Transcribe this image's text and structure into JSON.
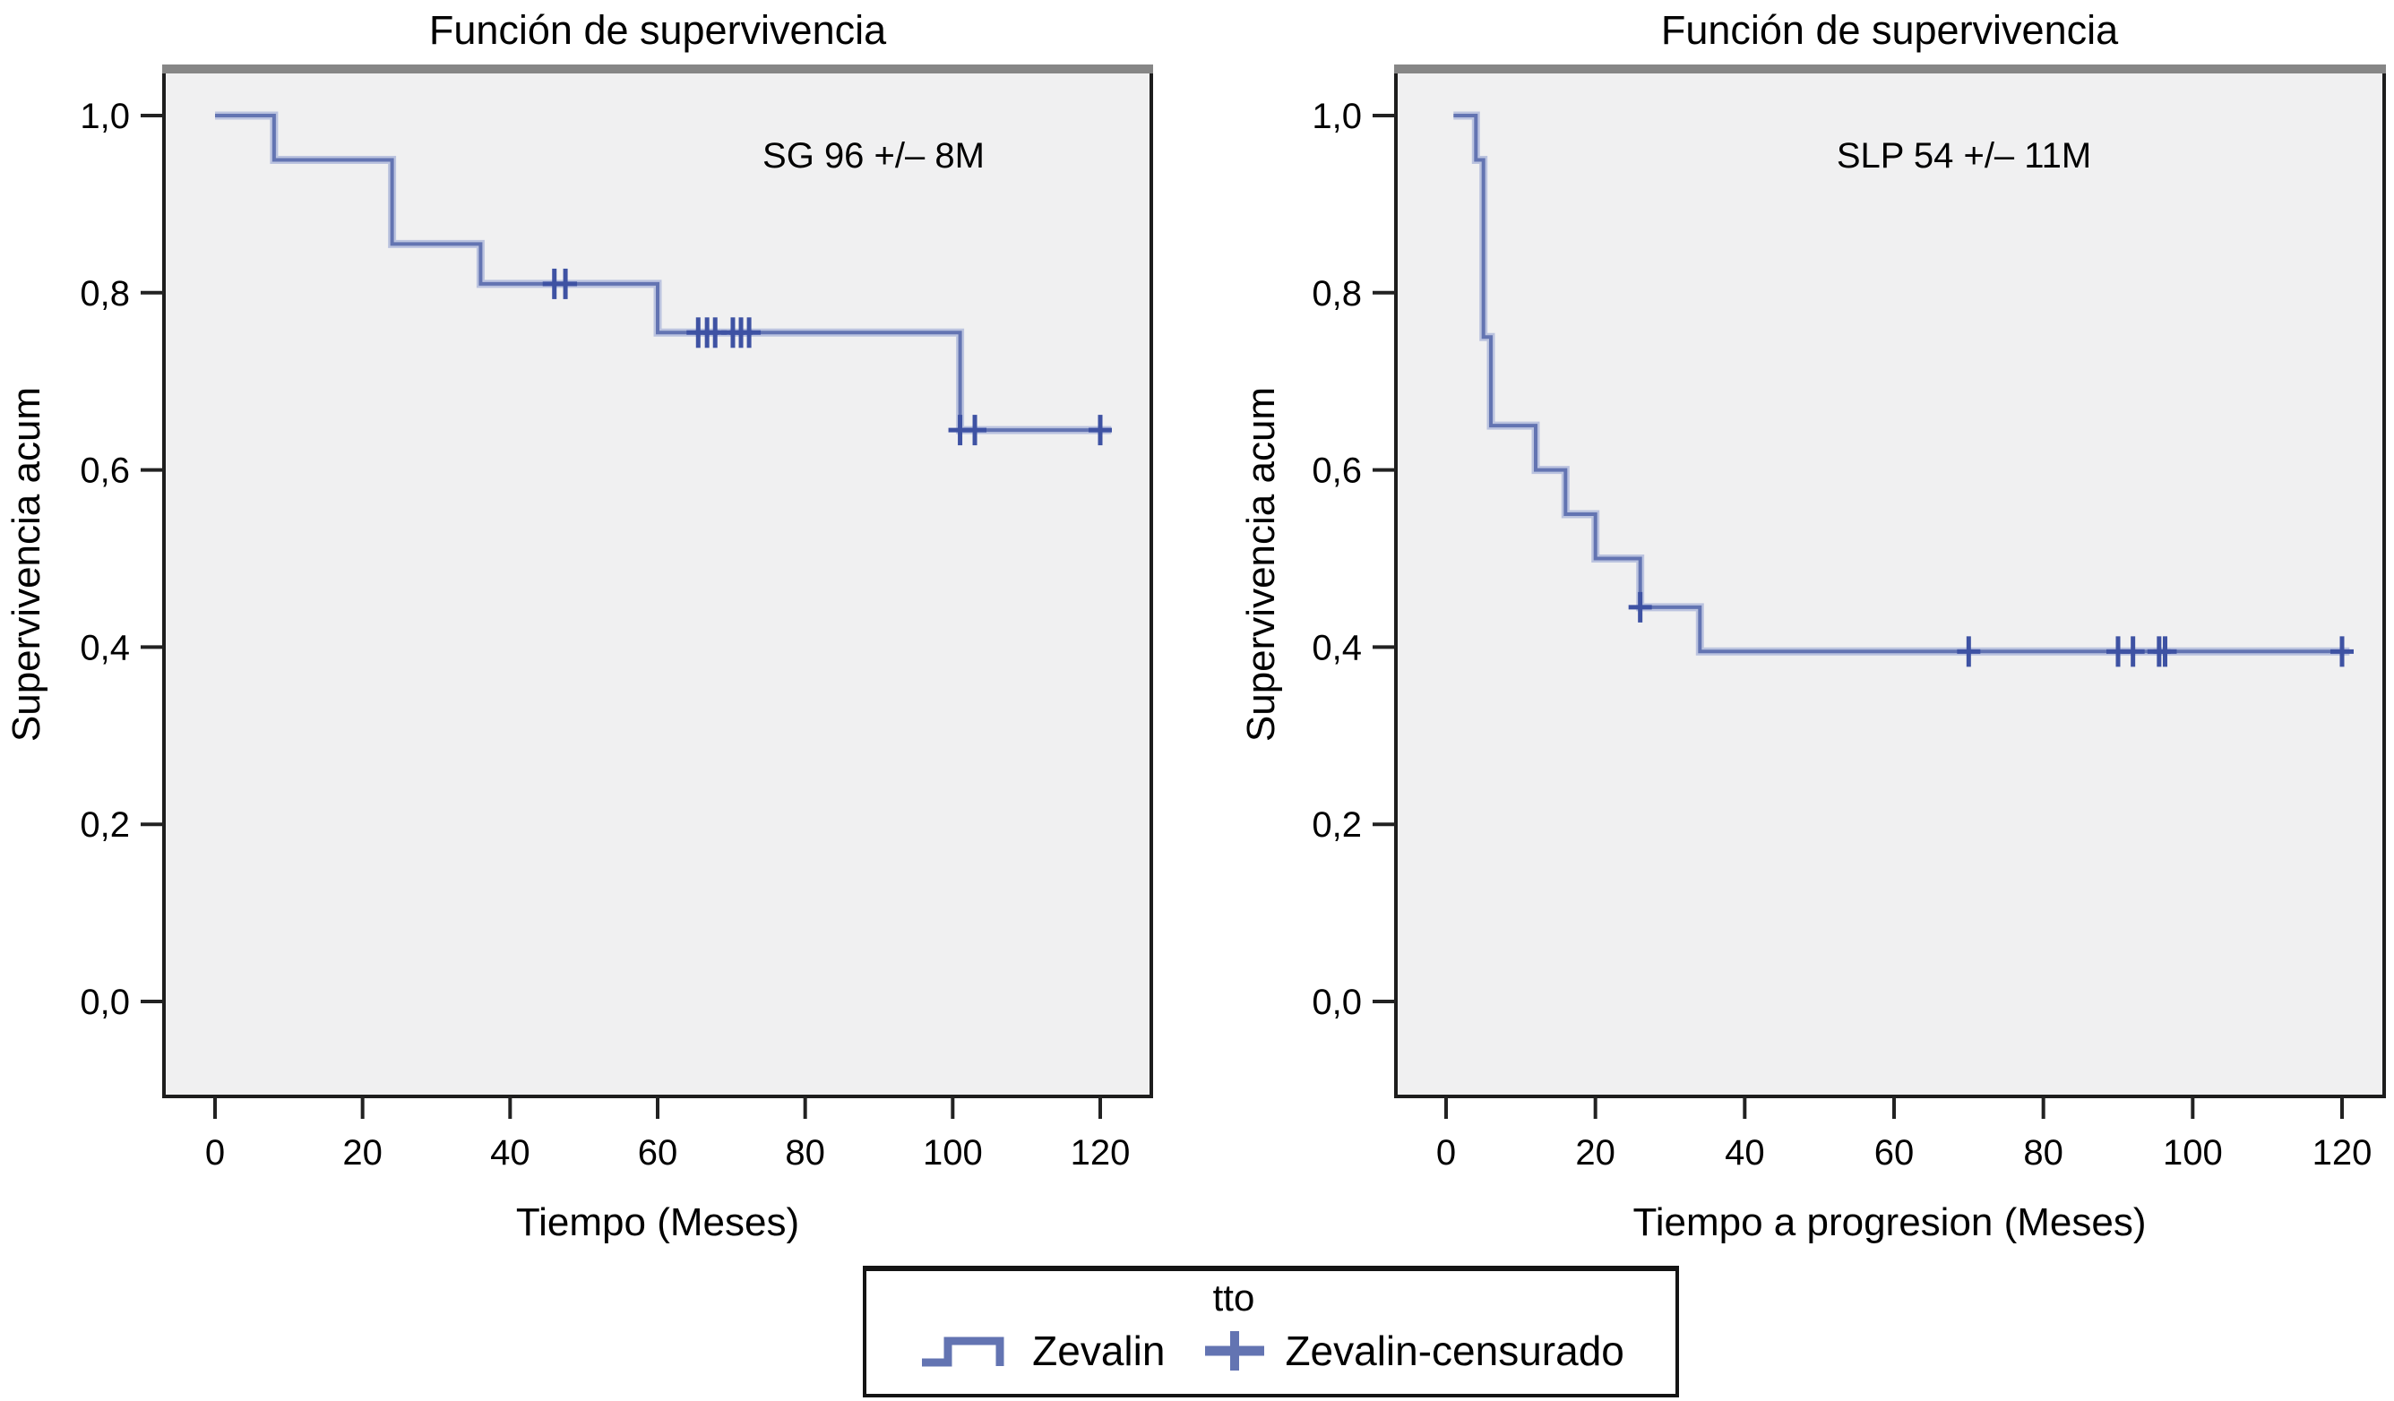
{
  "figure": {
    "background": "#ffffff"
  },
  "colors": {
    "line": "#6374b2",
    "line_halo": "#aab4d8",
    "censor": "#3e52a3",
    "plot_bg": "#f0f0f1",
    "frame": "#1d1d1d",
    "frame_top_shadow": "#868686",
    "tick": "#222222",
    "text": "#000000"
  },
  "legend": {
    "title": "tto",
    "entries": [
      {
        "symbol": "step-line",
        "label": "Zevalin"
      },
      {
        "symbol": "plus",
        "label": "Zevalin-censurado"
      }
    ]
  },
  "chart_data": [
    {
      "type": "line",
      "subtype": "kaplan-meier-step",
      "title": "Función de supervivencia",
      "annotation": "SG 96 +/– 8M",
      "xlabel": "Tiempo (Meses)",
      "ylabel": "Supervivencia acum",
      "xlim": [
        -7,
        127
      ],
      "ylim": [
        -0.11,
        1.06
      ],
      "x_ticks": [
        0,
        20,
        40,
        60,
        80,
        100,
        120
      ],
      "y_ticks": [
        1.0,
        0.8,
        0.6,
        0.4,
        0.2,
        0.0
      ],
      "y_tick_labels": [
        "1,0",
        "0,8",
        "0,6",
        "0,4",
        "0,2",
        "0,0"
      ],
      "grid": false,
      "series": [
        {
          "name": "Zevalin",
          "steps": [
            [
              0,
              1.0
            ],
            [
              8,
              1.0
            ],
            [
              8,
              0.95
            ],
            [
              24,
              0.95
            ],
            [
              24,
              0.855
            ],
            [
              36,
              0.855
            ],
            [
              36,
              0.81
            ],
            [
              60,
              0.81
            ],
            [
              60,
              0.755
            ],
            [
              101,
              0.755
            ],
            [
              101,
              0.645
            ],
            [
              121.5,
              0.645
            ]
          ]
        }
      ],
      "censored": [
        [
          46,
          0.81
        ],
        [
          47.5,
          0.81
        ],
        [
          65.5,
          0.755
        ],
        [
          66.7,
          0.755
        ],
        [
          67.8,
          0.755
        ],
        [
          70.2,
          0.755
        ],
        [
          71.3,
          0.755
        ],
        [
          72.4,
          0.755
        ],
        [
          101,
          0.645
        ],
        [
          103,
          0.645
        ],
        [
          120,
          0.645
        ]
      ]
    },
    {
      "type": "line",
      "subtype": "kaplan-meier-step",
      "title": "Función de supervivencia",
      "annotation": "SLP 54 +/– 11M",
      "xlabel": "Tiempo a progresion (Meses)",
      "ylabel": "Supervivencia acum",
      "xlim": [
        -7,
        127
      ],
      "ylim": [
        -0.11,
        1.06
      ],
      "x_ticks": [
        0,
        20,
        40,
        60,
        80,
        100,
        120
      ],
      "y_ticks": [
        1.0,
        0.8,
        0.6,
        0.4,
        0.2,
        0.0
      ],
      "y_tick_labels": [
        "1,0",
        "0,8",
        "0,6",
        "0,4",
        "0,2",
        "0,0"
      ],
      "grid": false,
      "series": [
        {
          "name": "Zevalin",
          "steps": [
            [
              1,
              1.0
            ],
            [
              4,
              1.0
            ],
            [
              4,
              0.95
            ],
            [
              5,
              0.95
            ],
            [
              5,
              0.75
            ],
            [
              6,
              0.75
            ],
            [
              6,
              0.65
            ],
            [
              12,
              0.65
            ],
            [
              12,
              0.6
            ],
            [
              16,
              0.6
            ],
            [
              16,
              0.55
            ],
            [
              20,
              0.55
            ],
            [
              20,
              0.5
            ],
            [
              26,
              0.5
            ],
            [
              26,
              0.445
            ],
            [
              34,
              0.445
            ],
            [
              34,
              0.395
            ],
            [
              121,
              0.395
            ]
          ]
        }
      ],
      "censored": [
        [
          26,
          0.445
        ],
        [
          70,
          0.395
        ],
        [
          90,
          0.395
        ],
        [
          92,
          0.395
        ],
        [
          95.5,
          0.395
        ],
        [
          96.3,
          0.395
        ],
        [
          120,
          0.395
        ]
      ]
    }
  ]
}
